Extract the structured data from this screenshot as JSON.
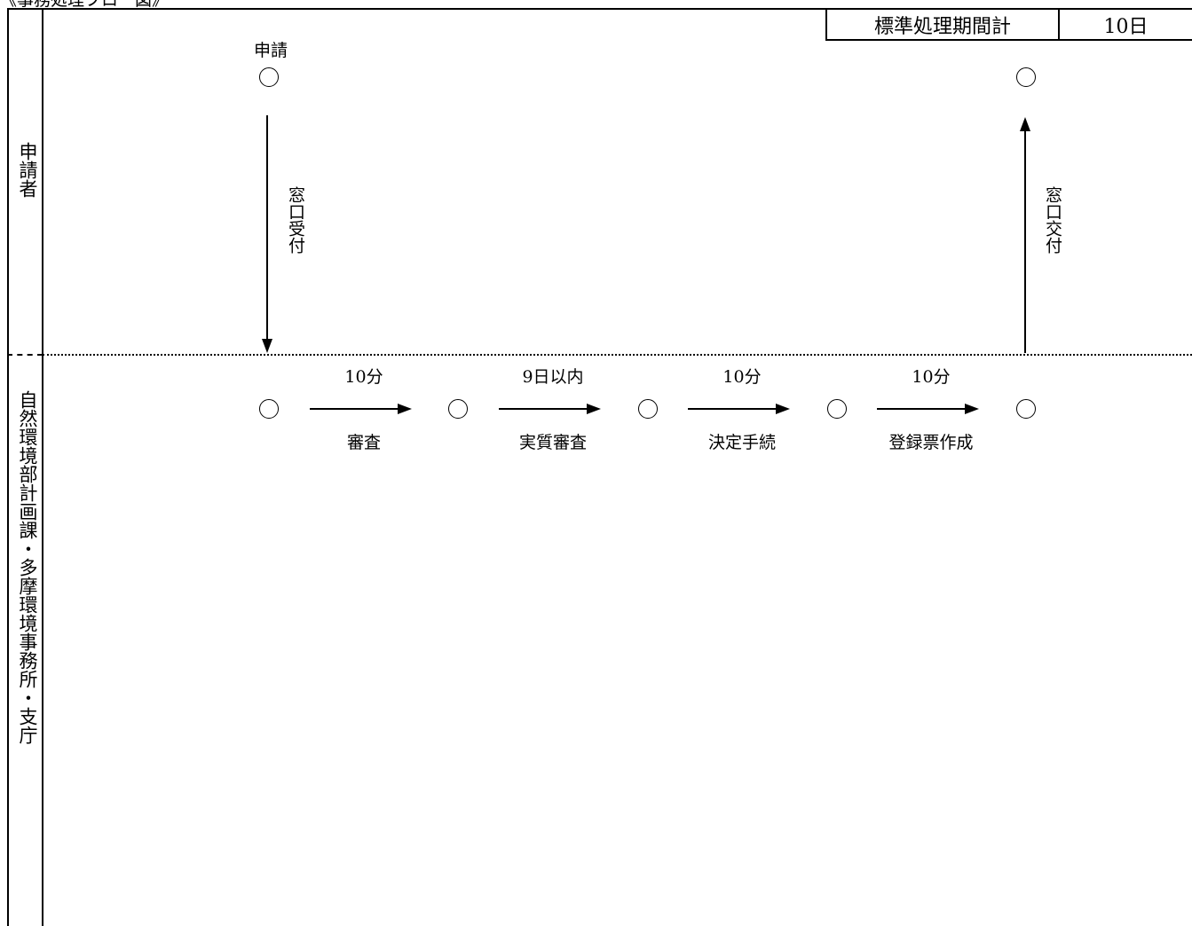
{
  "heading": "《事務処理フロー図》",
  "summary": {
    "label": "標準処理期間計",
    "value": "10日"
  },
  "lanes": {
    "applicant": "申請者",
    "office": "自然環境部計画課・多摩環境事務所・支庁"
  },
  "applicant_lane": {
    "start_label": "申請",
    "submit_step": "窓口受付",
    "return_step": "窓口交付"
  },
  "process": {
    "steps": [
      {
        "duration": "10分",
        "label": "審査"
      },
      {
        "duration": "9日以内",
        "label": "実質審査"
      },
      {
        "duration": "10分",
        "label": "決定手続"
      },
      {
        "duration": "10分",
        "label": "登録票作成"
      }
    ]
  }
}
